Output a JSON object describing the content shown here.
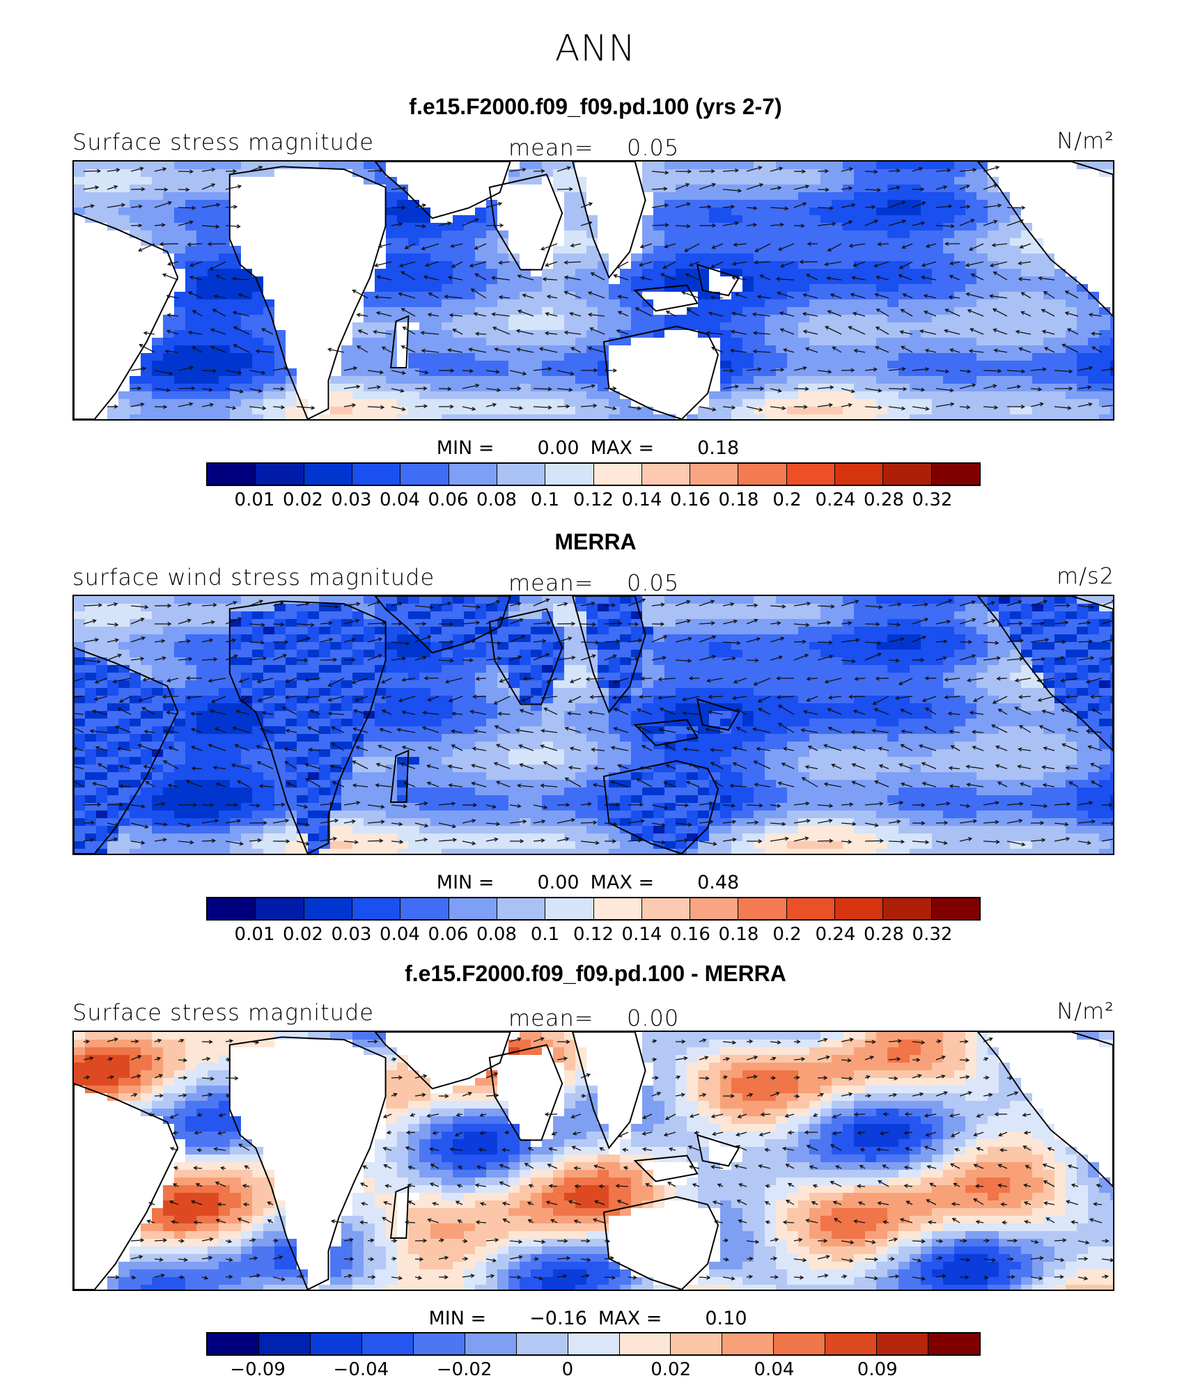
{
  "suptitle": "ANN",
  "panels": [
    {
      "title": "f.e15.F2000.f09_f09.pd.100 (yrs 2-7)",
      "variable_label": "Surface stress magnitude",
      "mean_label": "mean=",
      "mean_value": "0.05",
      "units": "N/m²",
      "min_label": "MIN =",
      "min_value": "0.00",
      "max_label": "MAX =",
      "max_value": "0.18",
      "field_type": "model_magnitude",
      "colorbar_ticks": [
        "0.01",
        "0.02",
        "0.03",
        "0.04",
        "0.06",
        "0.08",
        "0.1",
        "0.12",
        "0.14",
        "0.16",
        "0.18",
        "0.2",
        "0.24",
        "0.28",
        "0.32"
      ]
    },
    {
      "title": "MERRA",
      "variable_label": "surface wind stress magnitude",
      "mean_label": "mean=",
      "mean_value": "0.05",
      "units": "m/s2",
      "min_label": "MIN =",
      "min_value": "0.00",
      "max_label": "MAX =",
      "max_value": "0.48",
      "field_type": "obs_magnitude",
      "colorbar_ticks": [
        "0.01",
        "0.02",
        "0.03",
        "0.04",
        "0.06",
        "0.08",
        "0.1",
        "0.12",
        "0.14",
        "0.16",
        "0.18",
        "0.2",
        "0.24",
        "0.28",
        "0.32"
      ]
    },
    {
      "title": "f.e15.F2000.f09_f09.pd.100 - MERRA",
      "variable_label": "Surface stress magnitude",
      "mean_label": "mean=",
      "mean_value": "0.00",
      "units": "N/m²",
      "min_label": "MIN =",
      "min_value": "−0.16",
      "max_label": "MAX =",
      "max_value": "0.10",
      "field_type": "difference",
      "colorbar_ticks": [
        "−0.09",
        "−0.04",
        "−0.02",
        "0",
        "0.02",
        "0.04",
        "0.09"
      ]
    }
  ],
  "colors": {
    "sequential": [
      "#00007f",
      "#001ca8",
      "#0036cf",
      "#1a4ff0",
      "#3f6df5",
      "#7d9ff6",
      "#aac1f5",
      "#d6e4f9",
      "#fde8d9",
      "#fccab0",
      "#f9a583",
      "#f47a52",
      "#ec5026",
      "#d6340f",
      "#ad1f06",
      "#800000"
    ],
    "diverging": [
      "#00007f",
      "#0022b0",
      "#0a3ddc",
      "#2556f0",
      "#4d76f2",
      "#7f9ff3",
      "#b3c8f5",
      "#dbe6fa",
      "#fde6d6",
      "#fbc7a8",
      "#f8a179",
      "#f07548",
      "#dd4a21",
      "#b5260c",
      "#800000"
    ],
    "land": "#ffffff"
  }
}
